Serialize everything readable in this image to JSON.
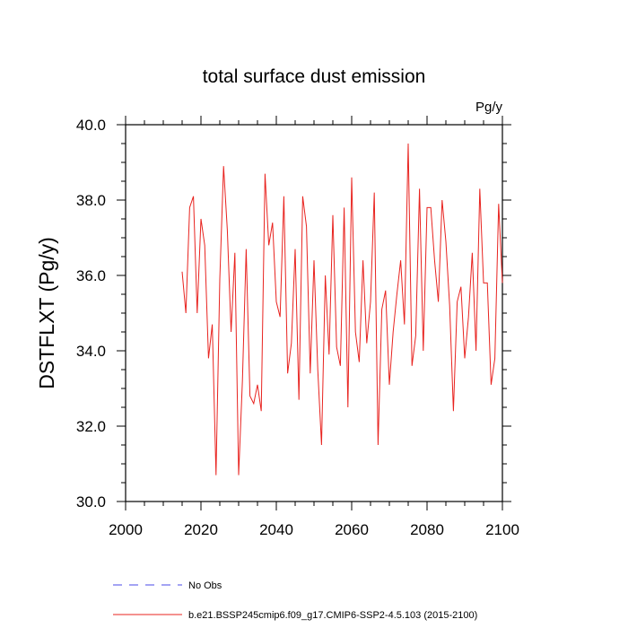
{
  "chart_data": {
    "type": "line",
    "title": "total surface dust emission",
    "units": "Pg/y",
    "ylabel": "DSTFLXT  (Pg/y)",
    "xlabel": "",
    "xlim": [
      2000,
      2100
    ],
    "ylim": [
      30.0,
      40.0
    ],
    "xticks": [
      2000,
      2020,
      2040,
      2060,
      2080,
      2100
    ],
    "xtick_labels": [
      "2000",
      "2020",
      "2040",
      "2060",
      "2080",
      "2100"
    ],
    "yticks": [
      30.0,
      32.0,
      34.0,
      36.0,
      38.0,
      40.0
    ],
    "ytick_labels": [
      "30.0",
      "32.0",
      "34.0",
      "36.0",
      "38.0",
      "40.0"
    ],
    "grid": false,
    "legend_position": "bottom",
    "series": [
      {
        "name": "b.e21.BSSP245cmip6.f09_g17.CMIP6-SSP2-4.5.103 (2015-2100)",
        "color": "#e8231f",
        "style": "solid",
        "x": [
          2015,
          2016,
          2017,
          2018,
          2019,
          2020,
          2021,
          2022,
          2023,
          2024,
          2025,
          2026,
          2027,
          2028,
          2029,
          2030,
          2031,
          2032,
          2033,
          2034,
          2035,
          2036,
          2037,
          2038,
          2039,
          2040,
          2041,
          2042,
          2043,
          2044,
          2045,
          2046,
          2047,
          2048,
          2049,
          2050,
          2051,
          2052,
          2053,
          2054,
          2055,
          2056,
          2057,
          2058,
          2059,
          2060,
          2061,
          2062,
          2063,
          2064,
          2065,
          2066,
          2067,
          2068,
          2069,
          2070,
          2071,
          2072,
          2073,
          2074,
          2075,
          2076,
          2077,
          2078,
          2079,
          2080,
          2081,
          2082,
          2083,
          2084,
          2085,
          2086,
          2087,
          2088,
          2089,
          2090,
          2091,
          2092,
          2093,
          2094,
          2095,
          2096,
          2097,
          2098,
          2099,
          2100
        ],
        "y": [
          36.1,
          35.0,
          37.8,
          38.1,
          35.0,
          37.5,
          36.8,
          33.8,
          34.7,
          30.7,
          35.9,
          38.9,
          37.2,
          34.5,
          36.6,
          30.7,
          33.2,
          36.7,
          32.8,
          32.6,
          33.1,
          32.4,
          38.7,
          36.8,
          37.4,
          35.3,
          34.9,
          38.1,
          33.4,
          34.2,
          36.7,
          32.7,
          38.1,
          37.3,
          33.4,
          36.4,
          33.5,
          31.5,
          36.0,
          33.9,
          37.6,
          34.1,
          33.6,
          37.8,
          32.5,
          38.6,
          34.5,
          33.7,
          36.4,
          34.2,
          35.3,
          38.2,
          31.5,
          35.1,
          35.6,
          33.1,
          34.5,
          35.5,
          36.4,
          34.7,
          39.5,
          33.6,
          34.4,
          38.3,
          34.0,
          37.8,
          37.8,
          36.4,
          35.3,
          38.0,
          36.9,
          35.2,
          32.4,
          35.3,
          35.7,
          33.8,
          34.9,
          36.6,
          34.0,
          38.3,
          35.8,
          35.8,
          33.1,
          33.8,
          37.9,
          35.8
        ]
      },
      {
        "name": "No Obs",
        "color": "#4a4ae8",
        "style": "dashed",
        "x": [],
        "y": []
      }
    ]
  }
}
